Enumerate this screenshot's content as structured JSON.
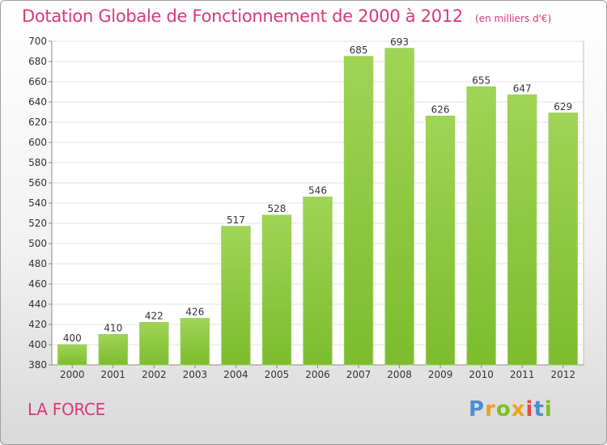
{
  "chart_data": {
    "type": "bar",
    "title": "Dotation Globale de Fonctionnement de 2000 à 2012",
    "subtitle": "(en milliers d'€)",
    "categories": [
      "2000",
      "2001",
      "2002",
      "2003",
      "2004",
      "2005",
      "2006",
      "2007",
      "2008",
      "2009",
      "2010",
      "2011",
      "2012"
    ],
    "values": [
      400,
      410,
      422,
      426,
      517,
      528,
      546,
      685,
      693,
      626,
      655,
      647,
      629
    ],
    "ylim": [
      380,
      700
    ],
    "yticks": [
      380,
      400,
      420,
      440,
      460,
      480,
      500,
      520,
      540,
      560,
      580,
      600,
      620,
      640,
      660,
      680,
      700
    ],
    "grid": true,
    "bar_color": "#7cbc2e",
    "bar_color_light": "#a0d455"
  },
  "commune": "LA FORCE",
  "brand": {
    "logo_text": "Proxiti",
    "colors": [
      "#4a8fd4",
      "#f0a020",
      "#7bbf2a",
      "#e34a4a"
    ]
  }
}
